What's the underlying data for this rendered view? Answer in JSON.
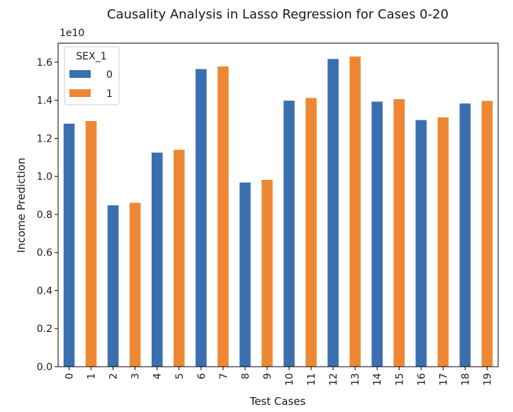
{
  "chart_data": {
    "type": "bar",
    "title": "Causality Analysis in Lasso Regression for Cases 0-20",
    "xlabel": "Test Cases",
    "ylabel": "Income Prediction",
    "y_offset_label": "1e10",
    "y_scale": 10000000000,
    "ylim": [
      0,
      1.7
    ],
    "yticks": [
      0.0,
      0.2,
      0.4,
      0.6,
      0.8,
      1.0,
      1.2,
      1.4,
      1.6
    ],
    "ytick_labels": [
      "0.0",
      "0.2",
      "0.4",
      "0.6",
      "0.8",
      "1.0",
      "1.2",
      "1.4",
      "1.6"
    ],
    "categories": [
      "0",
      "1",
      "2",
      "3",
      "4",
      "5",
      "6",
      "7",
      "8",
      "9",
      "10",
      "11",
      "12",
      "13",
      "14",
      "15",
      "16",
      "17",
      "18",
      "19"
    ],
    "values": [
      1.277,
      1.291,
      0.848,
      0.861,
      1.125,
      1.14,
      1.564,
      1.578,
      0.968,
      0.982,
      1.398,
      1.412,
      1.617,
      1.63,
      1.393,
      1.406,
      1.296,
      1.31,
      1.383,
      1.397
    ],
    "sex_1": [
      0,
      1,
      0,
      1,
      0,
      1,
      0,
      1,
      0,
      1,
      0,
      1,
      0,
      1,
      0,
      1,
      0,
      1,
      0,
      1
    ],
    "legend": {
      "title": "SEX_1",
      "placement": "top-left",
      "entries": [
        {
          "label": "0",
          "color": "#3b6fb0"
        },
        {
          "label": "1",
          "color": "#ee8733"
        }
      ]
    },
    "grid": false
  }
}
